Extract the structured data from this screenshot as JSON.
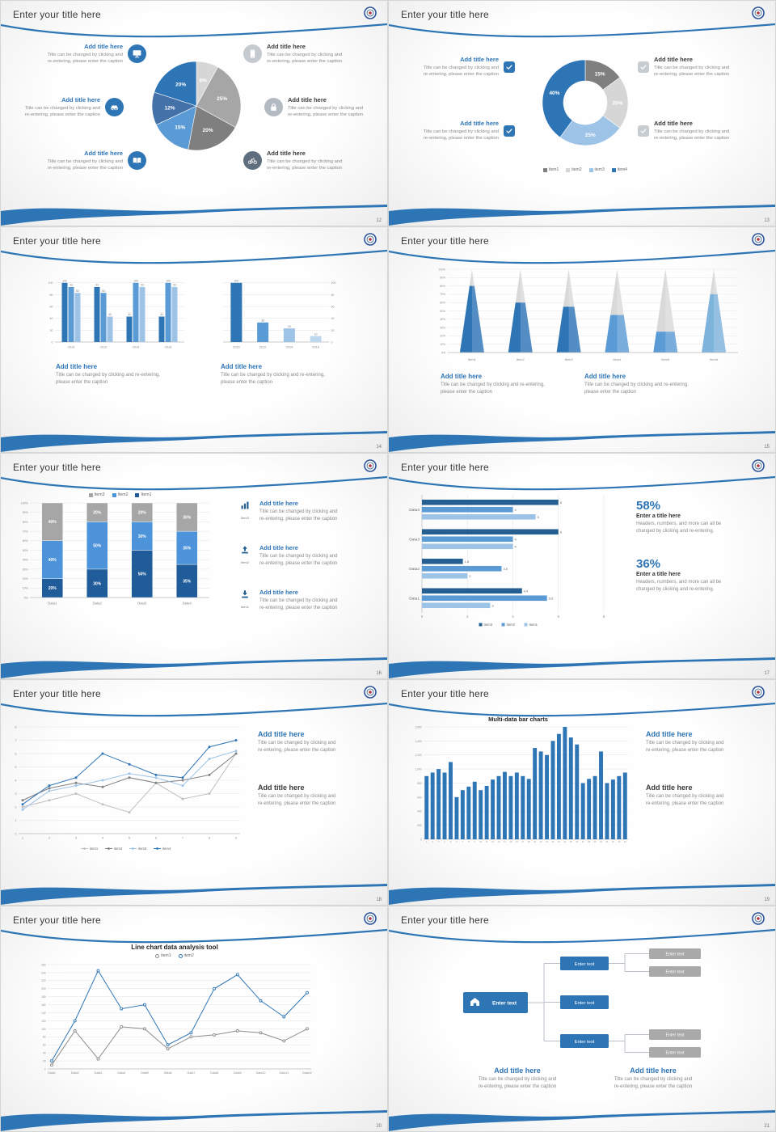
{
  "common": {
    "slide_title": "Enter your title here",
    "add_title": "Add title here",
    "caption_a": [
      "Title can be changed by clicking and",
      "re-entering, please enter the caption"
    ],
    "caption_b": [
      "Title can be changed by clicking and re-entering,",
      "please enter the caption"
    ]
  },
  "slides": [
    {
      "name": "pie-callouts",
      "page": "12"
    },
    {
      "name": "donut-checklist",
      "page": "13"
    },
    {
      "name": "bar-charts-pair",
      "page": "14"
    },
    {
      "name": "cone-chart",
      "page": "15"
    },
    {
      "name": "stacked-bar",
      "page": "16"
    },
    {
      "name": "hbar-stats",
      "page": "17"
    },
    {
      "name": "line-chart-4series",
      "page": "18"
    },
    {
      "name": "multi-data-bar",
      "page": "19"
    },
    {
      "name": "line-analysis",
      "page": "20"
    },
    {
      "name": "org-flow",
      "page": "21"
    }
  ],
  "slide6_stats": [
    {
      "pct": "58%",
      "title": "Enter a title here",
      "caption": [
        "Headers, numbers, and more can all be",
        "changed by clicking and re-entering."
      ]
    },
    {
      "pct": "36%",
      "title": "Enter a title here",
      "caption": [
        "Headers, numbers, and more can all be",
        "changed by clicking and re-entering."
      ]
    }
  ],
  "slide10": {
    "root": {
      "label": "Enter text",
      "icon": "home"
    },
    "mid": [
      "Enter text",
      "Enter text",
      "Enter text"
    ],
    "leaves": [
      "Enter text",
      "Enter text",
      "Enter text",
      "Enter text"
    ]
  },
  "chart_data": [
    {
      "type": "pie",
      "slices": [
        {
          "label": "8%",
          "value": 8,
          "color": "#D6D6D6"
        },
        {
          "label": "25%",
          "value": 25,
          "color": "#A6A6A6"
        },
        {
          "label": "20%",
          "value": 20,
          "color": "#7F7F7F"
        },
        {
          "label": "15%",
          "value": 15,
          "color": "#5B9BD5"
        },
        {
          "label": "12%",
          "value": 12,
          "color": "#4472A8"
        },
        {
          "label": "20%",
          "value": 20,
          "color": "#2E75B6"
        }
      ]
    },
    {
      "type": "donut",
      "slices": [
        {
          "label": "15%",
          "value": 15,
          "color": "#7F7F7F"
        },
        {
          "label": "20%",
          "value": 20,
          "color": "#D6D6D6"
        },
        {
          "label": "25%",
          "value": 25,
          "color": "#9DC3E6"
        },
        {
          "label": "40%",
          "value": 40,
          "color": "#2E75B6"
        }
      ],
      "legend": [
        {
          "label": "item1",
          "color": "#7F7F7F"
        },
        {
          "label": "item2",
          "color": "#D6D6D6"
        },
        {
          "label": "item3",
          "color": "#9DC3E6"
        },
        {
          "label": "item4",
          "color": "#2E75B6"
        }
      ]
    },
    {
      "type": "grouped_bar",
      "categories": [
        "2010",
        "2012",
        "2014",
        "2016"
      ],
      "yticks": [
        0,
        20,
        40,
        60,
        80,
        100
      ],
      "series": [
        {
          "name": "s1",
          "color": "#2E75B6",
          "values": [
            100,
            93,
            43,
            43
          ]
        },
        {
          "name": "s2",
          "color": "#5B9BD5",
          "values": [
            93,
            83,
            100,
            100
          ]
        },
        {
          "name": "s3",
          "color": "#9DC3E6",
          "values": [
            83,
            43,
            93,
            93
          ]
        }
      ]
    },
    {
      "type": "bar",
      "categories": [
        "2010",
        "2012",
        "2014",
        "2016"
      ],
      "yticks": [
        0,
        20,
        40,
        60,
        80,
        100
      ],
      "values": [
        100,
        33,
        23,
        10
      ],
      "colors": [
        "#2E75B6",
        "#5B9BD5",
        "#9DC3E6",
        "#BDD7EE"
      ]
    },
    {
      "type": "cone",
      "categories": [
        "Item1",
        "Item2",
        "Item3",
        "Item4",
        "Item5",
        "Item6"
      ],
      "values": [
        80,
        60,
        55,
        45,
        25,
        70
      ],
      "fills": [
        "#2E75B6",
        "#2E75B6",
        "#2E75B6",
        "#5B9BD5",
        "#5B9BD5",
        "#7EB3DC"
      ],
      "rest_color": "#D9D9D9",
      "ylim": [
        0,
        100
      ]
    },
    {
      "type": "stacked_bar",
      "categories": [
        "Data1",
        "Data2",
        "Data3",
        "Data4"
      ],
      "series": [
        {
          "name": "Item1",
          "color": "#1F5C99",
          "values": [
            20,
            30,
            50,
            35
          ]
        },
        {
          "name": "Item2",
          "color": "#4D93D9",
          "values": [
            40,
            50,
            30,
            35
          ]
        },
        {
          "name": "Item3",
          "color": "#A6A6A6",
          "values": [
            40,
            20,
            20,
            30
          ]
        }
      ],
      "legend": [
        {
          "label": "Item3",
          "color": "#A6A6A6"
        },
        {
          "label": "Item2",
          "color": "#4D93D9"
        },
        {
          "label": "Item1",
          "color": "#1F5C99"
        }
      ]
    },
    {
      "type": "hbar",
      "categories": [
        "Data4",
        "Data3",
        "Data2",
        "Data1"
      ],
      "xticks": [
        0,
        2,
        4,
        6,
        8
      ],
      "series": [
        {
          "name": "Item3",
          "color": "#255E91",
          "values": [
            6,
            6,
            1.8,
            4.4
          ]
        },
        {
          "name": "Item2",
          "color": "#5B9BD5",
          "values": [
            4,
            4,
            3.5,
            5.5
          ]
        },
        {
          "name": "Item1",
          "color": "#9DC3E6",
          "values": [
            5,
            4,
            2,
            3
          ]
        }
      ],
      "legend": [
        {
          "label": "Item3",
          "color": "#255E91"
        },
        {
          "label": "Item2",
          "color": "#5B9BD5"
        },
        {
          "label": "Item1",
          "color": "#9DC3E6"
        }
      ]
    },
    {
      "type": "line",
      "x": [
        "1",
        "2",
        "3",
        "4",
        "5",
        "6",
        "7",
        "8",
        "9"
      ],
      "yticks": [
        0,
        1,
        2,
        3,
        4,
        5,
        6,
        7,
        8
      ],
      "series": [
        {
          "name": "item1",
          "color": "#BFBFBF",
          "values": [
            2,
            2.5,
            3,
            2.2,
            1.6,
            3.8,
            2.6,
            3,
            6
          ]
        },
        {
          "name": "item2",
          "color": "#7F7F7F",
          "values": [
            2.5,
            3.4,
            3.8,
            3.5,
            4.2,
            3.8,
            4,
            4.4,
            6
          ]
        },
        {
          "name": "item3",
          "color": "#9DC3E6",
          "values": [
            1.8,
            3.2,
            3.6,
            4,
            4.5,
            4.2,
            3.6,
            5.6,
            6.2
          ]
        },
        {
          "name": "item4",
          "color": "#2E75B6",
          "values": [
            2.2,
            3.6,
            4.2,
            6,
            5.2,
            4.4,
            4.2,
            6.5,
            7
          ]
        }
      ]
    },
    {
      "type": "bar_multi",
      "title": "Multi-data bar charts",
      "color": "#2E75B6",
      "yticks": [
        0,
        200,
        400,
        600,
        800,
        1000,
        1200,
        1400,
        1600
      ],
      "x_labels": [
        "1",
        "2",
        "3",
        "4",
        "5",
        "6",
        "7",
        "8",
        "9",
        "10",
        "11",
        "12",
        "13",
        "14",
        "15",
        "16",
        "17",
        "18",
        "19",
        "20",
        "21",
        "22",
        "23",
        "24",
        "25",
        "26",
        "27",
        "28",
        "29",
        "30",
        "31",
        "32",
        "33",
        "34"
      ],
      "values": [
        900,
        950,
        1000,
        950,
        1100,
        600,
        700,
        750,
        820,
        700,
        760,
        850,
        900,
        960,
        900,
        950,
        900,
        860,
        1300,
        1250,
        1200,
        1400,
        1500,
        1600,
        1450,
        1350,
        800,
        860,
        900,
        1250,
        800,
        850,
        900,
        950
      ]
    },
    {
      "type": "line",
      "title": "Line chart data analysis tool",
      "x": [
        "Data1",
        "Data2",
        "Data3",
        "Data4",
        "Data5",
        "Data6",
        "Data7",
        "Data8",
        "Data9",
        "Data10",
        "Data11",
        "Data12"
      ],
      "yticks": [
        0,
        20,
        40,
        60,
        80,
        100,
        120,
        140,
        160,
        180,
        200,
        220,
        240,
        260
      ],
      "series": [
        {
          "name": "item1",
          "color": "#8C8C8C",
          "marker": "open",
          "values": [
            10,
            95,
            25,
            105,
            100,
            50,
            80,
            85,
            95,
            90,
            70,
            100
          ]
        },
        {
          "name": "item2",
          "color": "#2E75B6",
          "marker": "open",
          "values": [
            20,
            120,
            245,
            150,
            160,
            60,
            90,
            200,
            235,
            170,
            130,
            190
          ]
        }
      ]
    }
  ]
}
